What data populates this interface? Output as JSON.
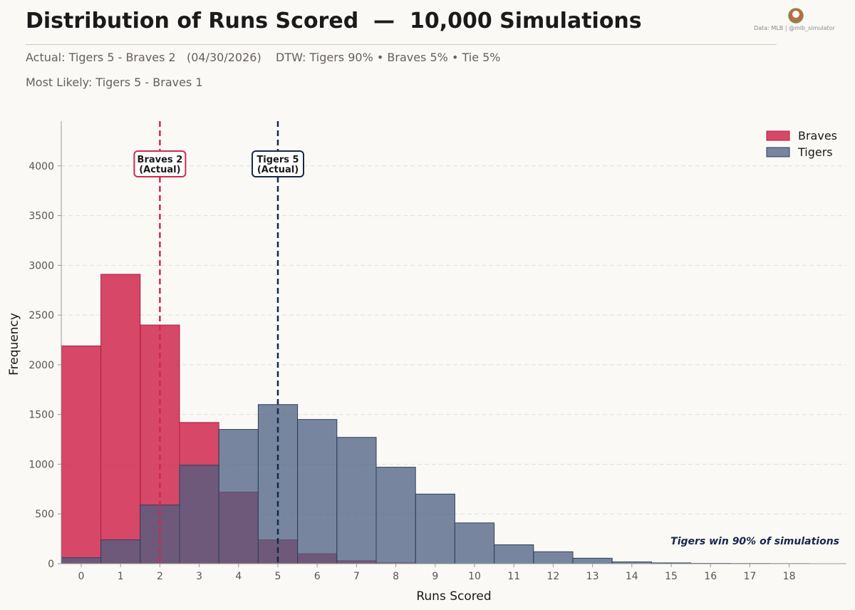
{
  "header": {
    "title": "Distribution of Runs Scored  —  10,000 Simulations",
    "subtitle_line1": "Actual: Tigers 5 - Braves 2   (04/30/2026)    DTW: Tigers 90% • Braves 5% • Tie 5%",
    "subtitle_line2": "Most Likely: Tigers 5 - Braves 1",
    "credit": "Data: MLB  |  @mlb_simulator"
  },
  "chart_data": {
    "type": "bar",
    "xlabel": "Runs Scored",
    "ylabel": "Frequency",
    "ylim": [
      0,
      4450
    ],
    "yticks": [
      0,
      500,
      1000,
      1500,
      2000,
      2500,
      3000,
      3500,
      4000
    ],
    "categories": [
      0,
      1,
      2,
      3,
      4,
      5,
      6,
      7,
      8,
      9,
      10,
      11,
      12,
      13,
      14,
      15,
      16,
      17,
      18
    ],
    "grid": "horizontal dashed",
    "legend_position": "top-right",
    "series": [
      {
        "name": "Braves",
        "color": "#d0284f",
        "values": [
          2190,
          2910,
          2400,
          1420,
          720,
          240,
          100,
          30,
          8,
          2,
          0,
          0,
          0,
          0,
          0,
          0,
          0,
          0,
          0
        ]
      },
      {
        "name": "Tigers",
        "color": "#5b6f8f",
        "values": [
          60,
          240,
          590,
          990,
          1350,
          1600,
          1450,
          1270,
          970,
          700,
          410,
          190,
          120,
          55,
          18,
          8,
          3,
          2,
          1
        ]
      }
    ],
    "annotations": [
      {
        "series": "Braves",
        "x": 2,
        "line1": "Braves 2",
        "line2": "(Actual)",
        "color": "#d0284f"
      },
      {
        "series": "Tigers",
        "x": 5,
        "line1": "Tigers 5",
        "line2": "(Actual)",
        "color": "#14284b"
      }
    ],
    "note": "Tigers win 90% of simulations"
  }
}
